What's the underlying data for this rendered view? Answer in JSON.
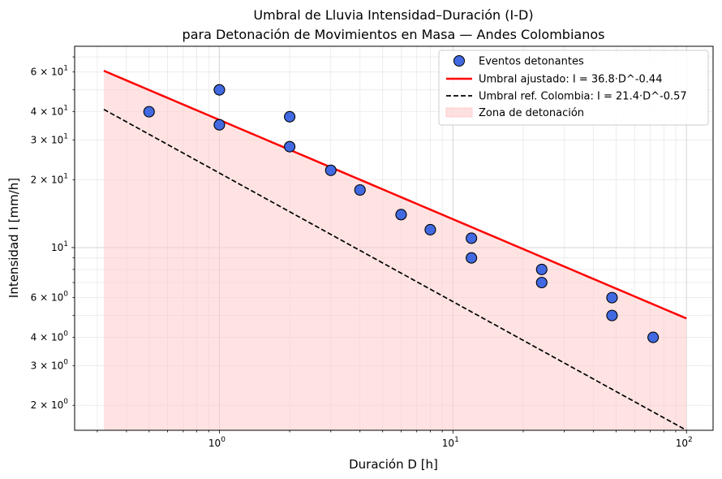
{
  "chart_data": {
    "type": "scatter",
    "title": "Umbral de Lluvia Intensidad–Duración (I-D)",
    "subtitle": "para Detonación de Movimientos en Masa — Andes Colombianos",
    "xlabel": "Duración D [h]",
    "ylabel": "Intensidad I [mm/h]",
    "xscale": "log",
    "yscale": "log",
    "xlim": [
      0.24,
      130
    ],
    "ylim": [
      1.55,
      78
    ],
    "grid": true,
    "legend_position": "top-right",
    "x_ticks": [
      {
        "value": 1,
        "base": "10",
        "exp": "0"
      },
      {
        "value": 10,
        "base": "10",
        "exp": "1"
      },
      {
        "value": 100,
        "base": "10",
        "exp": "2"
      }
    ],
    "y_ticks": [
      {
        "value": 2,
        "mant": "2 × 10",
        "exp": "0"
      },
      {
        "value": 3,
        "mant": "3 × 10",
        "exp": "0"
      },
      {
        "value": 4,
        "mant": "4 × 10",
        "exp": "0"
      },
      {
        "value": 6,
        "mant": "6 × 10",
        "exp": "0"
      },
      {
        "value": 10,
        "mant": "10",
        "exp": "1"
      },
      {
        "value": 20,
        "mant": "2 × 10",
        "exp": "1"
      },
      {
        "value": 30,
        "mant": "3 × 10",
        "exp": "1"
      },
      {
        "value": 40,
        "mant": "4 × 10",
        "exp": "1"
      },
      {
        "value": 60,
        "mant": "6 × 10",
        "exp": "1"
      }
    ],
    "events": {
      "name": "Eventos detonantes",
      "color": "#4169e1",
      "points": [
        {
          "x": 0.5,
          "y": 40
        },
        {
          "x": 1,
          "y": 50
        },
        {
          "x": 1,
          "y": 35
        },
        {
          "x": 2,
          "y": 38
        },
        {
          "x": 2,
          "y": 28
        },
        {
          "x": 3,
          "y": 22
        },
        {
          "x": 4,
          "y": 18
        },
        {
          "x": 6,
          "y": 14
        },
        {
          "x": 8,
          "y": 12
        },
        {
          "x": 12,
          "y": 11
        },
        {
          "x": 12,
          "y": 9
        },
        {
          "x": 24,
          "y": 8
        },
        {
          "x": 24,
          "y": 7
        },
        {
          "x": 48,
          "y": 6
        },
        {
          "x": 48,
          "y": 5
        },
        {
          "x": 72,
          "y": 4
        }
      ]
    },
    "fitted_threshold": {
      "name": "Umbral ajustado: I = 36.8·D^-0.44",
      "a": 36.8,
      "b": -0.44,
      "x_range": [
        0.32,
        100
      ],
      "color": "#ff0000",
      "style": "solid"
    },
    "reference_threshold": {
      "name": "Umbral ref. Colombia: I = 21.4·D^-0.57",
      "a": 21.4,
      "b": -0.57,
      "x_range": [
        0.32,
        100
      ],
      "color": "#000000",
      "style": "dashed"
    },
    "trigger_zone": {
      "name": "Zona de detonación",
      "color": "#ffcccc"
    }
  }
}
